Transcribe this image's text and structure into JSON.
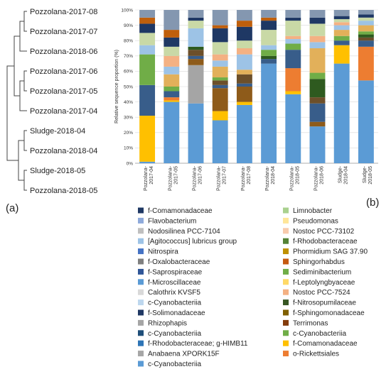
{
  "panel_labels": {
    "a": "(a)",
    "b": "(b)"
  },
  "dendrogram": {
    "leaves": [
      "Pozzolana-2017-08",
      "Pozzolana-2017-07",
      "Pozzolana-2018-06",
      "Pozzolana-2017-06",
      "Pozzolana-2017-05",
      "Pozzolana-2017-04",
      "Sludge-2018-04",
      "Pozzolana-2018-04",
      "Sludge-2018-05",
      "Pozzolana-2018-05"
    ]
  },
  "chart_data": {
    "type": "bar",
    "stacked": true,
    "ylabel": "Relative sequence proportion (%)",
    "ylim": [
      0,
      100
    ],
    "yticks": [
      "0%",
      "10%",
      "20%",
      "30%",
      "40%",
      "50%",
      "60%",
      "70%",
      "80%",
      "90%",
      "100%"
    ],
    "grid": true,
    "categories": [
      [
        "Pozzolana-",
        "2017-04"
      ],
      [
        "Pozzolana-",
        "2017-05"
      ],
      [
        "Pozzolana-",
        "2017-06"
      ],
      [
        "Pozzolana-",
        "2017-07"
      ],
      [
        "Pozzolana-",
        "2017-08"
      ],
      [
        "Pozzolana-",
        "2018-04"
      ],
      [
        "Pozzolana-",
        "2018-05"
      ],
      [
        "Pozzolana-",
        "2018-06"
      ],
      [
        "Sludge-",
        "2018-04"
      ],
      [
        "Sludge-",
        "2018-05"
      ]
    ],
    "segment_colors": [
      "#5b9bd5",
      "#ffc000",
      "#a5a5a5",
      "#ed7d31",
      "#8e5b1a",
      "#385d8a",
      "#6c4f2a",
      "#2e5a1f",
      "#70ad47",
      "#e2b05a",
      "#9dc3e6",
      "#f4b183",
      "#c9d9a6",
      "#1f3864",
      "#bf5f0c",
      "#8497b0"
    ],
    "bars": [
      [
        1,
        30,
        0,
        0,
        0,
        20,
        0,
        0,
        20,
        0,
        6,
        0,
        8,
        6,
        4,
        5
      ],
      [
        40,
        1,
        0,
        2,
        0,
        4,
        0,
        0,
        3,
        8,
        5,
        7,
        6,
        6,
        5,
        13
      ],
      [
        39,
        0,
        25,
        0,
        4,
        2,
        4,
        2,
        0,
        0,
        12,
        0,
        5,
        2,
        0,
        5
      ],
      [
        28,
        6,
        0,
        0,
        15,
        2,
        3,
        0,
        2,
        7,
        4,
        4,
        8,
        9,
        2,
        10
      ],
      [
        38,
        2,
        0,
        0,
        10,
        2,
        6,
        0,
        0,
        3,
        10,
        4,
        5,
        9,
        4,
        7
      ],
      [
        65,
        0,
        0,
        0,
        0,
        3,
        0,
        2,
        4,
        0,
        3,
        0,
        10,
        6,
        2,
        5
      ],
      [
        45,
        2,
        0,
        15,
        0,
        12,
        0,
        0,
        4,
        0,
        3,
        2,
        10,
        2,
        0,
        5
      ],
      [
        24,
        0,
        0,
        0,
        3,
        12,
        4,
        12,
        4,
        16,
        4,
        4,
        8,
        4,
        0,
        5
      ],
      [
        65,
        12,
        0,
        0,
        0,
        3,
        0,
        0,
        3,
        4,
        3,
        2,
        2,
        2,
        0,
        4
      ],
      [
        54,
        0,
        0,
        22,
        0,
        4,
        2,
        2,
        2,
        4,
        3,
        0,
        2,
        2,
        0,
        3
      ]
    ],
    "legend_left": [
      {
        "label": "f-Comamonadaceae",
        "color": "#1f3864"
      },
      {
        "label": "Flavobacterium",
        "color": "#8eaadb"
      },
      {
        "label": "Nodosilinea PCC-7104",
        "color": "#bfbfbf"
      },
      {
        "label": "[Agitococcus] lubricus group",
        "color": "#9dc3e6"
      },
      {
        "label": "Nitrospira",
        "color": "#4472c4"
      },
      {
        "label": "f-Oxalobacteraceae",
        "color": "#7f7f7f"
      },
      {
        "label": "f-Saprospiraceae",
        "color": "#2f5597"
      },
      {
        "label": "f-Microscillaceae",
        "color": "#5b9bd5"
      },
      {
        "label": "Calothrix KVSF5",
        "color": "#d9d9d9"
      },
      {
        "label": "c-Cyanobacteriia",
        "color": "#bdd7ee"
      },
      {
        "label": "f-Solimonadaceae",
        "color": "#203864"
      },
      {
        "label": "Rhizophapis",
        "color": "#a5a5a5"
      },
      {
        "label": "c-Cyanobacteriia",
        "color": "#1f4e79"
      },
      {
        "label": "f-Rhodobacteraceae; g-HIMB11",
        "color": "#2e75b6"
      },
      {
        "label": "Anabaena XPORK15F",
        "color": "#a6a6a6"
      },
      {
        "label": "c-Cyanobacteriia",
        "color": "#5b9bd5"
      }
    ],
    "legend_right": [
      {
        "label": "Limnobacter",
        "color": "#a9d18e"
      },
      {
        "label": "Pseudomonas",
        "color": "#ffe699"
      },
      {
        "label": "Nostoc PCC-73102",
        "color": "#f8cbad"
      },
      {
        "label": "f-Rhodobacteraceae",
        "color": "#548235"
      },
      {
        "label": "Phormidium SAG 37.90",
        "color": "#bf9000"
      },
      {
        "label": "Sphingorhabdus",
        "color": "#c55a11"
      },
      {
        "label": "Sediminibacterium",
        "color": "#70ad47"
      },
      {
        "label": "f-Leptolyngbyaceae",
        "color": "#ffd966"
      },
      {
        "label": "Nostoc PCC-7524",
        "color": "#f4b183"
      },
      {
        "label": "f-Nitrosopumilaceae",
        "color": "#375623"
      },
      {
        "label": "f-Sphingomonadaceae",
        "color": "#806000"
      },
      {
        "label": "Terrimonas",
        "color": "#843c0c"
      },
      {
        "label": "c-Cyanobacteriia",
        "color": "#70ad47"
      },
      {
        "label": "f-Comamonadaceae",
        "color": "#ffc000"
      },
      {
        "label": "o-Rickettsiales",
        "color": "#ed7d31"
      }
    ]
  }
}
